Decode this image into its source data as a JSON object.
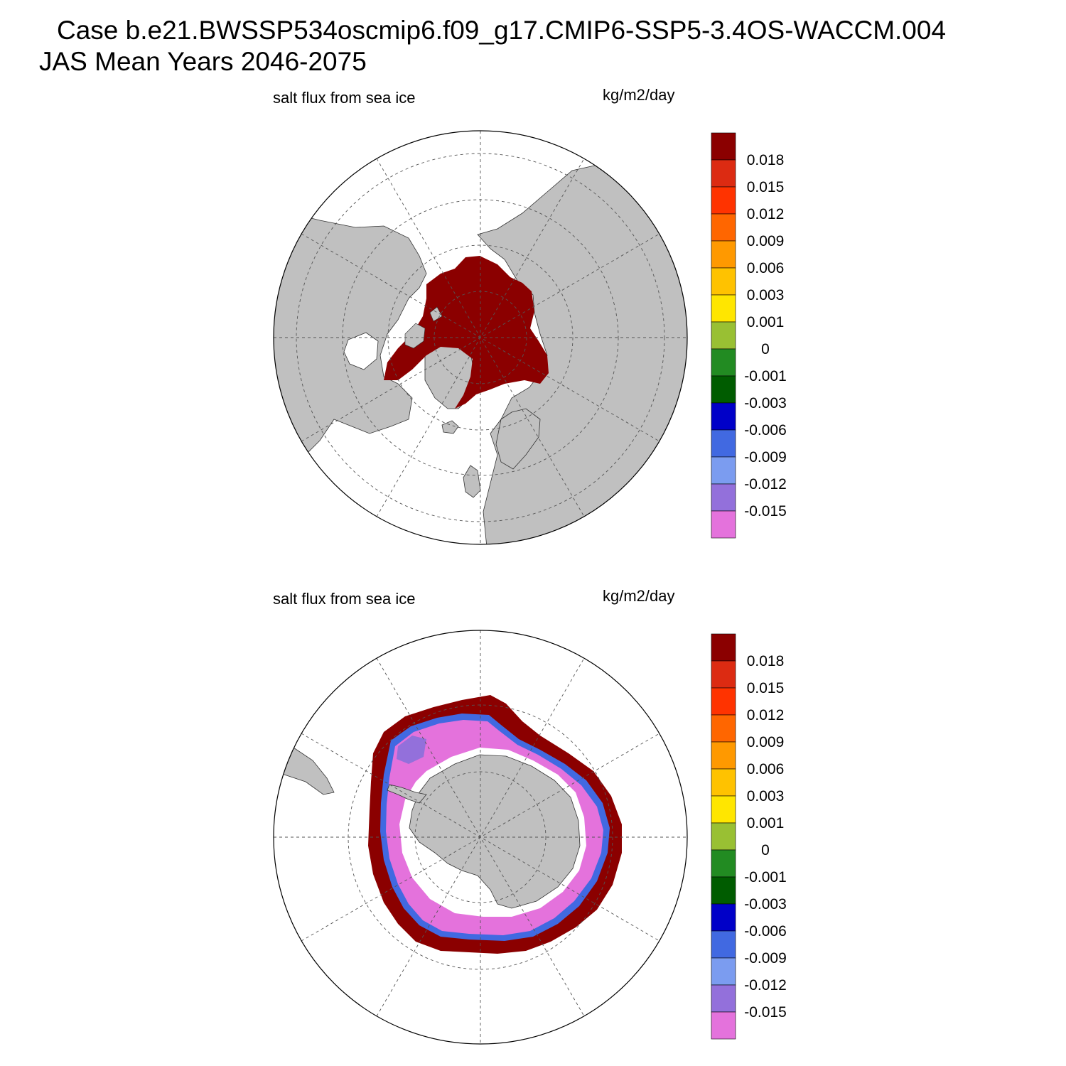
{
  "title": {
    "line1": "Case b.e21.BWSSP534oscmip6.f09_g17.CMIP6-SSP5-3.4OS-WACCM.004",
    "line2": "JAS Mean   Years 2046-2075"
  },
  "panels": [
    {
      "id": "north",
      "left_label": "salt flux from sea ice",
      "right_label": "kg/m2/day"
    },
    {
      "id": "south",
      "left_label": "salt flux from sea ice",
      "right_label": "kg/m2/day"
    }
  ],
  "colorbar": {
    "levels": [
      "0.018",
      "0.015",
      "0.012",
      "0.009",
      "0.006",
      "0.003",
      "0.001",
      "0",
      "-0.001",
      "-0.003",
      "-0.006",
      "-0.009",
      "-0.012",
      "-0.015"
    ],
    "colors": [
      "#8b0000",
      "#dc2b12",
      "#ff3300",
      "#ff6600",
      "#ff9900",
      "#ffc200",
      "#ffe600",
      "#99c033",
      "#228b22",
      "#005c00",
      "#0000c8",
      "#4169e1",
      "#7b9cf0",
      "#9370db",
      "#e472dc"
    ]
  },
  "colors": {
    "land": "#c0c0c0",
    "ocean": "#ffffff",
    "ice_positive": "#8b0000",
    "ice_negative": "#e472dc"
  }
}
